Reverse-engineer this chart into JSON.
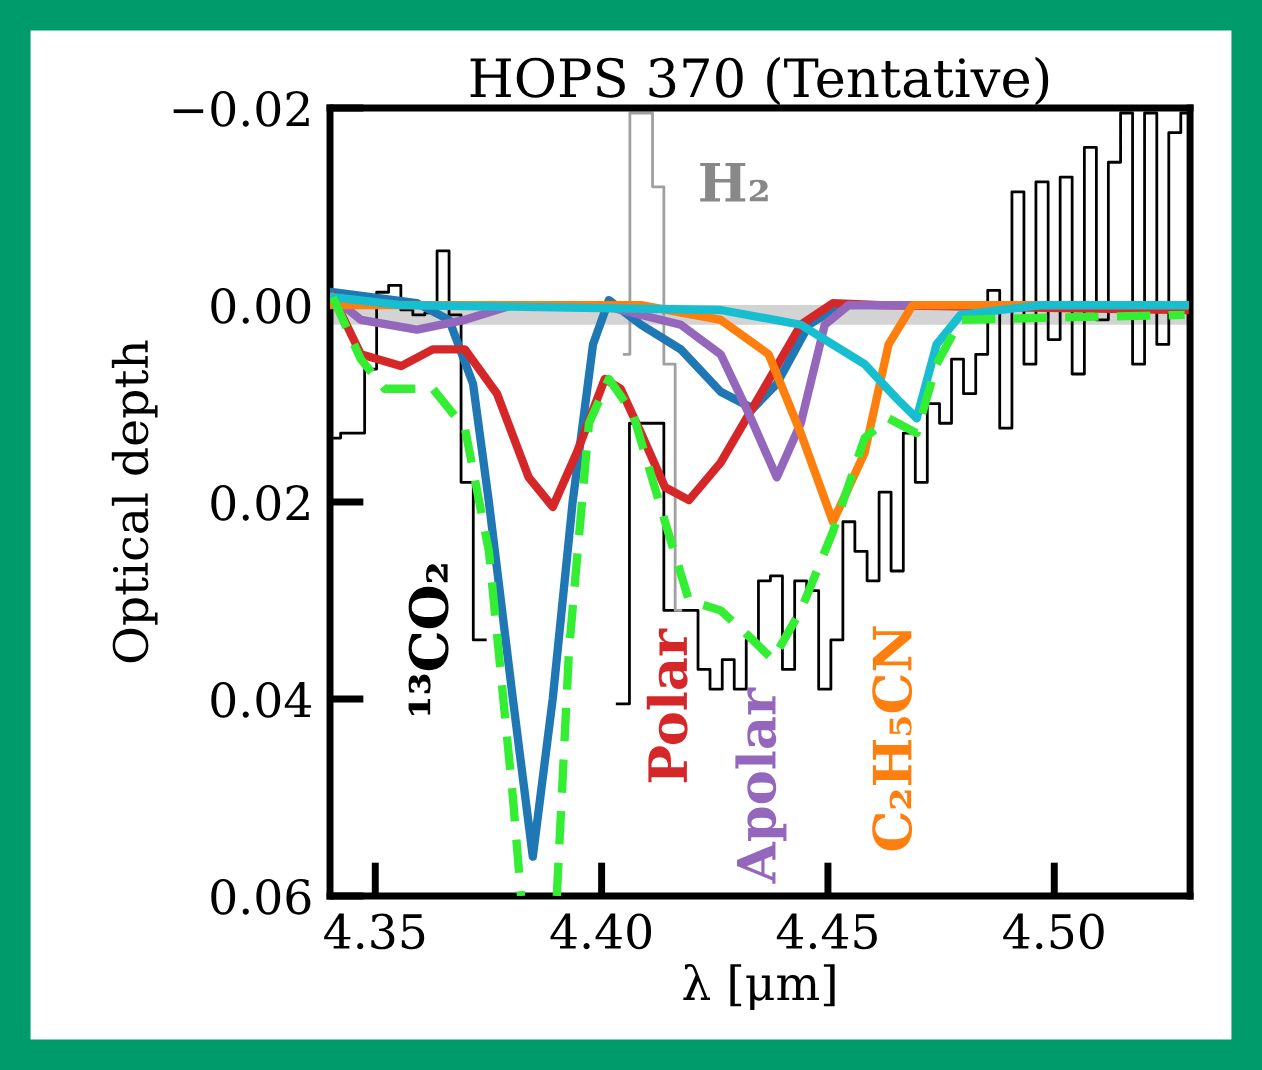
{
  "chart_data": {
    "type": "line",
    "title": "HOPS 370 (Tentative)",
    "xlabel": "λ [μm]",
    "ylabel": "Optical depth",
    "xlim": [
      4.34,
      4.53
    ],
    "ylim": [
      0.06,
      -0.02
    ],
    "xticks": [
      {
        "value": 4.35,
        "label": "4.35"
      },
      {
        "value": 4.4,
        "label": "4.40"
      },
      {
        "value": 4.45,
        "label": "4.45"
      },
      {
        "value": 4.5,
        "label": "4.50"
      }
    ],
    "yticks": [
      {
        "value": -0.02,
        "label": "−0.02"
      },
      {
        "value": 0.0,
        "label": "0.00"
      },
      {
        "value": 0.02,
        "label": "0.02"
      },
      {
        "value": 0.04,
        "label": "0.04"
      },
      {
        "value": 0.06,
        "label": "0.06"
      }
    ],
    "bands": [
      {
        "axis": "y",
        "from": 0.0,
        "to": 0.002,
        "color": "#d3d3d3"
      }
    ],
    "series": [
      {
        "type": "step",
        "color": "#000000",
        "x": [
          4.341,
          4.3437,
          4.3463,
          4.349,
          4.3516,
          4.3543,
          4.357,
          4.3596,
          4.3623,
          4.365,
          4.3676,
          4.3703,
          4.373,
          4.3756,
          4.4021,
          4.4048,
          4.4075,
          4.42,
          4.4226,
          4.4253,
          4.428,
          4.4306,
          4.4333,
          4.436,
          4.4386,
          4.4413,
          4.444,
          4.4466,
          4.4493,
          4.452,
          4.4546,
          4.4573,
          4.46,
          4.4626,
          4.4653,
          4.468,
          4.4706,
          4.4733,
          4.476,
          4.4786,
          4.4813,
          4.484,
          4.4866,
          4.4893,
          4.492,
          4.4946,
          4.4973,
          4.5,
          4.5026,
          4.5053,
          4.508,
          4.5106,
          4.5133,
          4.516,
          4.5186,
          4.5213,
          4.524,
          4.5266,
          4.5293
        ],
        "values": [
          0.0135,
          0.013,
          0.013,
          0.0065,
          -0.0013,
          -0.002,
          0.0005,
          0.001,
          0.0008,
          -0.0055,
          0.001,
          0.018,
          0.034,
          null,
          null,
          0.0405,
          0.012,
          0.031,
          0.037,
          0.039,
          0.036,
          0.039,
          0.034,
          0.028,
          0.0275,
          0.037,
          0.028,
          0.029,
          0.039,
          0.034,
          0.022,
          0.025,
          0.028,
          0.019,
          0.027,
          0.013,
          0.018,
          0.01,
          0.012,
          0.0055,
          0.009,
          0.005,
          -0.0015,
          0.0125,
          -0.0115,
          0.006,
          -0.0125,
          0.0035,
          -0.013,
          0.007,
          -0.016,
          0.0015,
          -0.0145,
          -0.0195,
          0.006,
          -0.0195,
          0.004,
          -0.0175,
          -0.0195
        ]
      },
      {
        "type": "step",
        "name": "H₂",
        "color": "#a0a0a0",
        "x": [
          4.405,
          4.4075,
          4.41,
          4.4125,
          4.415,
          4.4175
        ],
        "values": [
          0.005,
          -0.0195,
          -0.0195,
          -0.012,
          0.006,
          0.031
        ]
      },
      {
        "name": "¹³CO₂",
        "color": "#1f77b4",
        "x": [
          4.3406,
          4.3592,
          4.3663,
          4.3716,
          4.3751,
          4.3804,
          4.3848,
          4.3892,
          4.3936,
          4.3981,
          4.4016,
          4.4087,
          4.4175,
          4.4263,
          4.4334,
          4.4387,
          4.4458,
          4.4528,
          4.5288
        ],
        "values": [
          -0.0013,
          -0.0002,
          0.0015,
          0.008,
          0.02,
          0.04,
          0.056,
          0.04,
          0.02,
          0.004,
          -0.0005,
          0.002,
          0.0045,
          0.0088,
          0.0105,
          0.008,
          0.002,
          0.0,
          0.0
        ]
      },
      {
        "name": "Polar",
        "color": "#d62728",
        "x": [
          4.3406,
          4.3468,
          4.3557,
          4.3627,
          4.3698,
          4.3769,
          4.3839,
          4.3892,
          4.3945,
          4.4007,
          4.4042,
          4.4087,
          4.414,
          4.4193,
          4.4263,
          4.4352,
          4.444,
          4.4511,
          4.4617,
          4.5288
        ],
        "values": [
          -0.0009,
          0.005,
          0.0062,
          0.0045,
          0.0045,
          0.009,
          0.0175,
          0.0205,
          0.015,
          0.0075,
          0.0085,
          0.013,
          0.0185,
          0.0198,
          0.016,
          0.009,
          0.002,
          -0.0002,
          0.0,
          0.0005
        ]
      },
      {
        "name": "Apolar",
        "color": "#9467bd",
        "x": [
          4.3406,
          4.3468,
          4.3592,
          4.3698,
          4.3804,
          4.3998,
          4.4175,
          4.4263,
          4.4325,
          4.4387,
          4.444,
          4.4493,
          4.4546,
          4.5288
        ],
        "values": [
          -0.0008,
          0.0015,
          0.0025,
          0.0015,
          0.0,
          0.0,
          0.002,
          0.005,
          0.011,
          0.0175,
          0.012,
          0.002,
          0.0,
          0.0
        ]
      },
      {
        "name": "C₂H₅CN",
        "color": "#ff7f0e",
        "x": [
          4.3406,
          4.4087,
          4.4263,
          4.4369,
          4.444,
          4.4511,
          4.4581,
          4.4634,
          4.4687,
          4.5288
        ],
        "values": [
          0.0,
          0.0,
          0.0015,
          0.005,
          0.013,
          0.022,
          0.015,
          0.004,
          0.0,
          0.0
        ]
      },
      {
        "color": "#17becf",
        "x": [
          4.3406,
          4.3557,
          4.4263,
          4.444,
          4.4581,
          4.4652,
          4.4696,
          4.474,
          4.4793,
          4.497,
          4.5288
        ],
        "values": [
          -0.0008,
          0.0,
          0.0005,
          0.002,
          0.006,
          0.0095,
          0.0115,
          0.004,
          0.001,
          0.0,
          0.0
        ]
      },
      {
        "color": "#33ee33",
        "line_style": "dashed",
        "x": [
          4.3406,
          4.3468,
          4.3521,
          4.3627,
          4.3698,
          4.3751,
          4.3804,
          4.3822,
          4.3855,
          4.3901,
          4.3928,
          4.3972,
          4.4016,
          4.4069,
          4.414,
          4.4193,
          4.4263,
          4.4334,
          4.4378,
          4.444,
          4.4511,
          4.4581,
          4.4634,
          4.4696,
          4.474,
          4.4793,
          4.497,
          4.5288
        ],
        "values": [
          -0.0008,
          0.0055,
          0.0085,
          0.0085,
          0.0125,
          0.025,
          0.05,
          0.06,
          null,
          0.06,
          0.035,
          0.012,
          0.0075,
          0.011,
          0.022,
          0.03,
          0.031,
          0.034,
          0.036,
          0.031,
          0.023,
          0.0135,
          0.0115,
          0.013,
          0.006,
          0.0015,
          0.0013,
          0.001
        ]
      }
    ]
  }
}
